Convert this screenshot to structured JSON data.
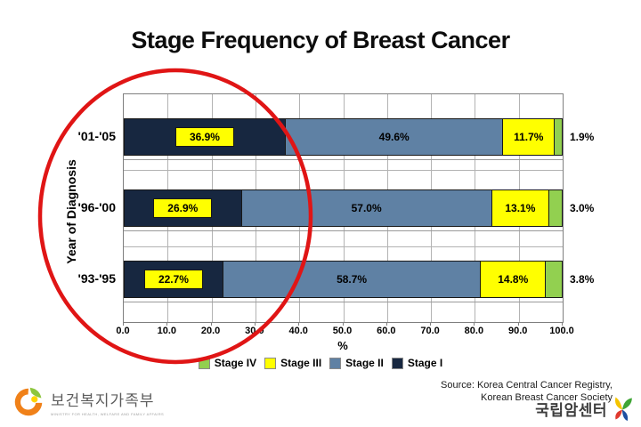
{
  "title": "Stage Frequency of Breast Cancer",
  "chart_data": {
    "type": "bar",
    "orientation": "horizontal",
    "stacked": true,
    "title": "Stage Frequency of Breast Cancer",
    "xlabel": "%",
    "ylabel": "Year of Diagnosis",
    "xlim": [
      0,
      100
    ],
    "xticks": [
      "0.0",
      "10.0",
      "20.0",
      "30.0",
      "40.0",
      "50.0",
      "60.0",
      "70.0",
      "80.0",
      "90.0",
      "100.0"
    ],
    "categories": [
      "'01-'05",
      "'96-'00",
      "'93-'95"
    ],
    "series": [
      {
        "name": "Stage I",
        "color": "#172740",
        "values": [
          36.9,
          26.9,
          22.7
        ],
        "label_style": "yellow-chip"
      },
      {
        "name": "Stage II",
        "color": "#5f81a4",
        "values": [
          49.6,
          57.0,
          58.7
        ],
        "label_style": "inside"
      },
      {
        "name": "Stage III",
        "color": "#ffff00",
        "values": [
          11.7,
          13.1,
          14.8
        ],
        "label_style": "inside"
      },
      {
        "name": "Stage IV",
        "color": "#92d050",
        "values": [
          1.9,
          3.0,
          3.8
        ],
        "label_style": "outside"
      }
    ],
    "legend_order": [
      "Stage IV",
      "Stage III",
      "Stage II",
      "Stage I"
    ],
    "legend_position": "bottom",
    "grid": true
  },
  "annotation": {
    "type": "ellipse",
    "color": "#e01515",
    "highlights": "Stage I percentages"
  },
  "source": {
    "line1": "Source: Korea Central Cancer Registry,",
    "line2": "Korean Breast Cancer Society"
  },
  "footer": {
    "ministry": {
      "name": "보건복지가족부",
      "subtitle": "MINISTRY FOR HEALTH, WELFARE AND FAMILY AFFAIRS",
      "icon": "ministry-swirl-icon"
    },
    "ncc": {
      "name": "국립암센터",
      "icon": "ncc-leaf-icon"
    }
  }
}
